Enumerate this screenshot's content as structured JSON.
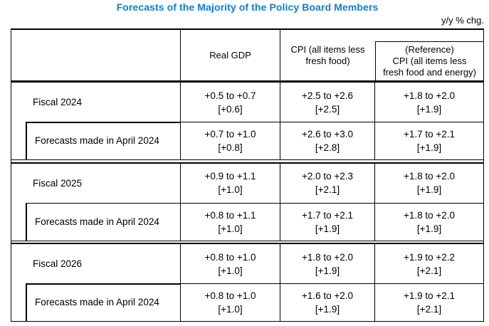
{
  "title": "Forecasts of the Majority of the Policy Board Members",
  "unit_note": "y/y % chg.",
  "colors": {
    "title_blue": "#0e7ed3",
    "border_black": "#000000",
    "background": "#ffffff"
  },
  "table": {
    "columns": [
      "Real GDP",
      "CPI (all items less\nfresh food)",
      "(Reference)\nCPI (all items less\nfresh food and energy)"
    ],
    "sections": [
      {
        "label": "Fiscal 2024",
        "cells": [
          {
            "range": "+0.5 to +0.7",
            "point": "[+0.6]"
          },
          {
            "range": "+2.5 to +2.6",
            "point": "[+2.5]"
          },
          {
            "range": "+1.8 to +2.0",
            "point": "[+1.9]"
          }
        ],
        "sub_label": "Forecasts made in April 2024",
        "sub_cells": [
          {
            "range": "+0.7 to +1.0",
            "point": "[+0.8]"
          },
          {
            "range": "+2.6 to +3.0",
            "point": "[+2.8]"
          },
          {
            "range": "+1.7 to +2.1",
            "point": "[+1.9]"
          }
        ]
      },
      {
        "label": "Fiscal 2025",
        "cells": [
          {
            "range": "+0.9 to +1.1",
            "point": "[+1.0]"
          },
          {
            "range": "+2.0 to +2.3",
            "point": "[+2.1]"
          },
          {
            "range": "+1.8 to +2.0",
            "point": "[+1.9]"
          }
        ],
        "sub_label": "Forecasts made in April 2024",
        "sub_cells": [
          {
            "range": "+0.8 to +1.1",
            "point": "[+1.0]"
          },
          {
            "range": "+1.7 to +2.1",
            "point": "[+1.9]"
          },
          {
            "range": "+1.8 to +2.0",
            "point": "[+1.9]"
          }
        ]
      },
      {
        "label": "Fiscal 2026",
        "cells": [
          {
            "range": "+0.8 to +1.0",
            "point": "[+1.0]"
          },
          {
            "range": "+1.8 to +2.0",
            "point": "[+1.9]"
          },
          {
            "range": "+1.9 to +2.2",
            "point": "[+2.1]"
          }
        ],
        "sub_label": "Forecasts made in April 2024",
        "sub_cells": [
          {
            "range": "+0.8 to +1.0",
            "point": "[+1.0]"
          },
          {
            "range": "+1.6 to +2.0",
            "point": "[+1.9]"
          },
          {
            "range": "+1.9 to +2.1",
            "point": "[+2.1]"
          }
        ]
      }
    ]
  }
}
